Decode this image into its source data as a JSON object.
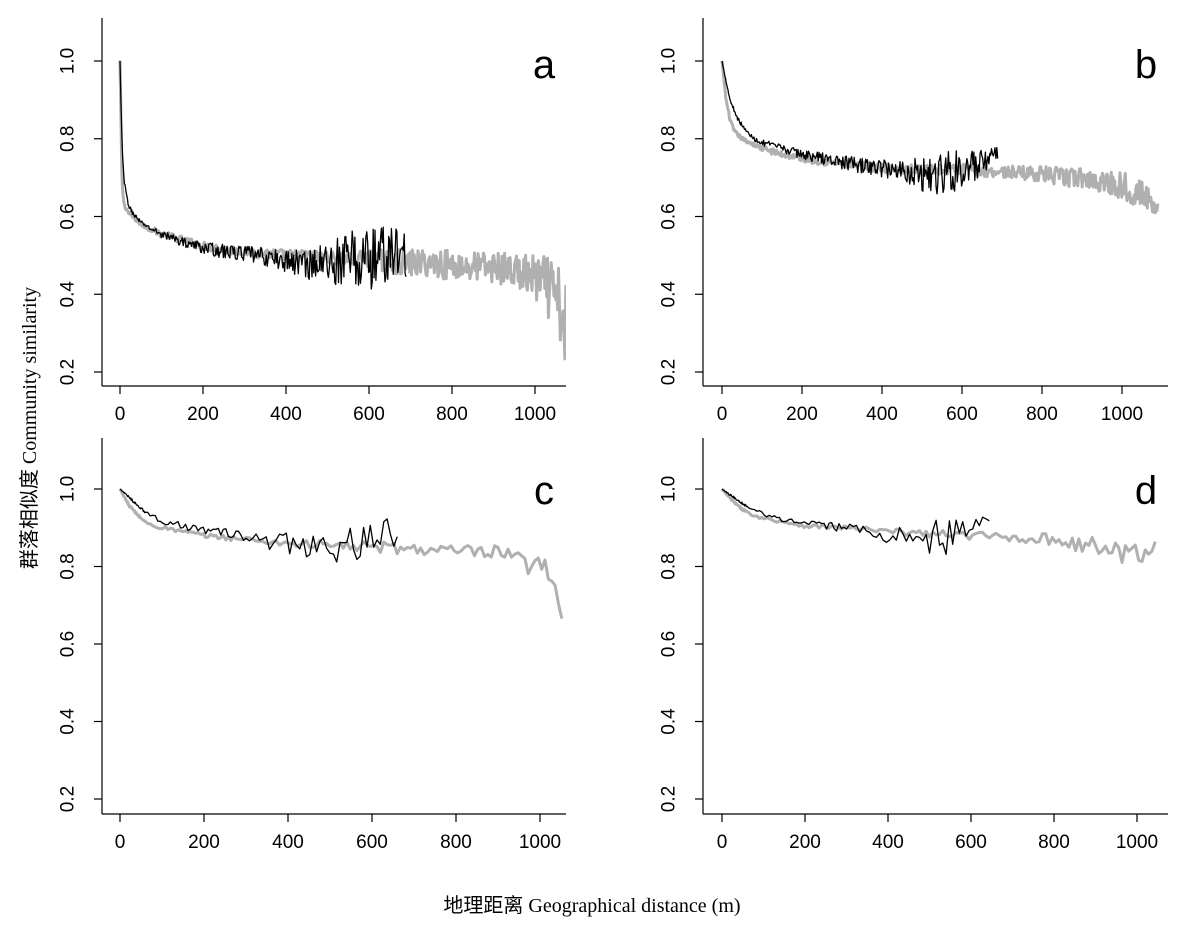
{
  "figure": {
    "xlabel": "地理距离  Geographical distance (m)",
    "ylabel": "群落相似度  Community similarity"
  },
  "colors": {
    "series_black": "#000000",
    "series_gray": "#b0b0b0",
    "axis": "#000000"
  },
  "chart_data": [
    {
      "type": "line",
      "panel": "a",
      "xlim": [
        0,
        1100
      ],
      "ylim": [
        0.2,
        1.0
      ],
      "xticks": [
        0,
        200,
        400,
        600,
        800,
        1000
      ],
      "yticks": [
        0.2,
        0.4,
        0.6,
        0.8,
        1.0
      ],
      "series": [
        {
          "color": "gray",
          "x": [
            0,
            5,
            10,
            20,
            30,
            50,
            80,
            100,
            150,
            200,
            250,
            300,
            350,
            400,
            450,
            500,
            550,
            600,
            650,
            700,
            750,
            800,
            850,
            900,
            950,
            1000,
            1030,
            1050,
            1070,
            1090
          ],
          "y": [
            1.0,
            0.68,
            0.63,
            0.61,
            0.6,
            0.58,
            0.565,
            0.555,
            0.54,
            0.525,
            0.515,
            0.51,
            0.505,
            0.5,
            0.5,
            0.495,
            0.49,
            0.49,
            0.485,
            0.48,
            0.48,
            0.475,
            0.47,
            0.47,
            0.46,
            0.44,
            0.42,
            0.38,
            0.33,
            0.3
          ],
          "noise": [
            0.005,
            0.005,
            0.005,
            0.005,
            0.005,
            0.005,
            0.008,
            0.008,
            0.01,
            0.01,
            0.012,
            0.012,
            0.015,
            0.015,
            0.015,
            0.015,
            0.02,
            0.025,
            0.03,
            0.035,
            0.035,
            0.04,
            0.04,
            0.04,
            0.045,
            0.06,
            0.08,
            0.1,
            0.12,
            0.13
          ]
        },
        {
          "color": "black",
          "x": [
            0,
            5,
            10,
            20,
            30,
            50,
            80,
            100,
            150,
            200,
            250,
            300,
            350,
            400,
            450,
            500,
            530,
            560,
            600,
            630,
            660,
            690
          ],
          "y": [
            1.0,
            0.78,
            0.69,
            0.63,
            0.61,
            0.585,
            0.565,
            0.555,
            0.535,
            0.52,
            0.51,
            0.505,
            0.495,
            0.485,
            0.48,
            0.48,
            0.485,
            0.49,
            0.49,
            0.5,
            0.51,
            0.5
          ],
          "noise": [
            0,
            0.005,
            0.005,
            0.005,
            0.005,
            0.005,
            0.008,
            0.01,
            0.012,
            0.015,
            0.018,
            0.02,
            0.025,
            0.03,
            0.04,
            0.06,
            0.07,
            0.08,
            0.09,
            0.08,
            0.07,
            0.06
          ]
        }
      ]
    },
    {
      "type": "line",
      "panel": "b",
      "xlim": [
        0,
        1100
      ],
      "ylim": [
        0.2,
        1.0
      ],
      "xticks": [
        0,
        200,
        400,
        600,
        800,
        1000
      ],
      "yticks": [
        0.2,
        0.4,
        0.6,
        0.8,
        1.0
      ],
      "series": [
        {
          "color": "gray",
          "x": [
            0,
            10,
            20,
            30,
            50,
            80,
            100,
            150,
            200,
            300,
            400,
            500,
            600,
            700,
            800,
            850,
            900,
            950,
            1000,
            1030,
            1060,
            1090
          ],
          "y": [
            1.0,
            0.9,
            0.85,
            0.82,
            0.8,
            0.785,
            0.775,
            0.76,
            0.75,
            0.735,
            0.725,
            0.72,
            0.72,
            0.715,
            0.71,
            0.7,
            0.7,
            0.69,
            0.68,
            0.67,
            0.65,
            0.62
          ],
          "noise": [
            0,
            0.005,
            0.005,
            0.005,
            0.005,
            0.005,
            0.008,
            0.008,
            0.01,
            0.01,
            0.012,
            0.012,
            0.015,
            0.015,
            0.02,
            0.025,
            0.025,
            0.03,
            0.035,
            0.04,
            0.03,
            0.02
          ]
        },
        {
          "color": "black",
          "x": [
            0,
            10,
            20,
            40,
            60,
            80,
            100,
            150,
            200,
            250,
            300,
            350,
            400,
            450,
            480,
            500,
            530,
            560,
            600,
            640,
            660,
            690
          ],
          "y": [
            1.0,
            0.95,
            0.9,
            0.85,
            0.82,
            0.8,
            0.79,
            0.775,
            0.76,
            0.75,
            0.74,
            0.73,
            0.725,
            0.72,
            0.715,
            0.71,
            0.71,
            0.715,
            0.72,
            0.73,
            0.74,
            0.76
          ],
          "noise": [
            0,
            0.005,
            0.005,
            0.005,
            0.005,
            0.005,
            0.008,
            0.01,
            0.012,
            0.015,
            0.018,
            0.02,
            0.025,
            0.03,
            0.04,
            0.05,
            0.06,
            0.06,
            0.05,
            0.04,
            0.03,
            0.02
          ]
        }
      ]
    },
    {
      "type": "line",
      "panel": "c",
      "xlim": [
        0,
        1060
      ],
      "ylim": [
        0.2,
        1.0
      ],
      "xticks": [
        0,
        200,
        400,
        600,
        800,
        1000
      ],
      "yticks": [
        0.2,
        0.4,
        0.6,
        0.8,
        1.0
      ],
      "series": [
        {
          "color": "gray",
          "x": [
            0,
            20,
            40,
            60,
            80,
            100,
            150,
            200,
            300,
            400,
            500,
            600,
            700,
            800,
            850,
            900,
            950,
            980,
            1000,
            1020,
            1040,
            1055
          ],
          "y": [
            1.0,
            0.96,
            0.935,
            0.915,
            0.905,
            0.9,
            0.89,
            0.88,
            0.87,
            0.86,
            0.855,
            0.85,
            0.845,
            0.84,
            0.835,
            0.83,
            0.81,
            0.8,
            0.79,
            0.78,
            0.75,
            0.65
          ],
          "noise": [
            0,
            0.003,
            0.003,
            0.003,
            0.003,
            0.005,
            0.005,
            0.005,
            0.008,
            0.01,
            0.012,
            0.015,
            0.015,
            0.015,
            0.02,
            0.025,
            0.03,
            0.04,
            0.04,
            0.04,
            0.03,
            0
          ]
        },
        {
          "color": "black",
          "x": [
            0,
            20,
            40,
            60,
            80,
            100,
            150,
            200,
            250,
            300,
            350,
            400,
            450,
            500,
            550,
            600,
            640,
            665
          ],
          "y": [
            1.0,
            0.98,
            0.96,
            0.94,
            0.93,
            0.915,
            0.905,
            0.895,
            0.885,
            0.875,
            0.865,
            0.86,
            0.85,
            0.84,
            0.845,
            0.85,
            0.88,
            0.86
          ],
          "noise": [
            0,
            0.003,
            0.003,
            0.003,
            0.005,
            0.008,
            0.01,
            0.012,
            0.015,
            0.015,
            0.02,
            0.03,
            0.04,
            0.05,
            0.06,
            0.06,
            0.05,
            0.03
          ]
        }
      ]
    },
    {
      "type": "line",
      "panel": "d",
      "xlim": [
        0,
        1060
      ],
      "ylim": [
        0.2,
        1.0
      ],
      "xticks": [
        0,
        200,
        400,
        600,
        800,
        1000
      ],
      "yticks": [
        0.2,
        0.4,
        0.6,
        0.8,
        1.0
      ],
      "series": [
        {
          "color": "gray",
          "x": [
            0,
            20,
            40,
            60,
            80,
            100,
            150,
            200,
            300,
            400,
            500,
            600,
            700,
            800,
            850,
            900,
            950,
            1000,
            1020,
            1035,
            1050
          ],
          "y": [
            1.0,
            0.975,
            0.955,
            0.94,
            0.93,
            0.925,
            0.915,
            0.905,
            0.9,
            0.89,
            0.885,
            0.88,
            0.875,
            0.87,
            0.86,
            0.85,
            0.84,
            0.83,
            0.83,
            0.84,
            0.88
          ],
          "noise": [
            0,
            0.003,
            0.003,
            0.003,
            0.003,
            0.004,
            0.005,
            0.005,
            0.006,
            0.008,
            0.01,
            0.01,
            0.012,
            0.015,
            0.02,
            0.025,
            0.03,
            0.03,
            0.02,
            0.01,
            0
          ]
        },
        {
          "color": "black",
          "x": [
            0,
            20,
            40,
            60,
            80,
            100,
            150,
            200,
            250,
            300,
            350,
            400,
            450,
            480,
            500,
            530,
            560,
            600,
            630,
            650
          ],
          "y": [
            1.0,
            0.985,
            0.97,
            0.955,
            0.945,
            0.935,
            0.92,
            0.91,
            0.905,
            0.9,
            0.89,
            0.88,
            0.875,
            0.87,
            0.87,
            0.87,
            0.88,
            0.9,
            0.92,
            0.92
          ],
          "noise": [
            0,
            0.003,
            0.003,
            0.003,
            0.004,
            0.005,
            0.006,
            0.008,
            0.01,
            0.012,
            0.015,
            0.02,
            0.03,
            0.04,
            0.05,
            0.05,
            0.04,
            0.03,
            0.01,
            0
          ]
        }
      ]
    }
  ]
}
